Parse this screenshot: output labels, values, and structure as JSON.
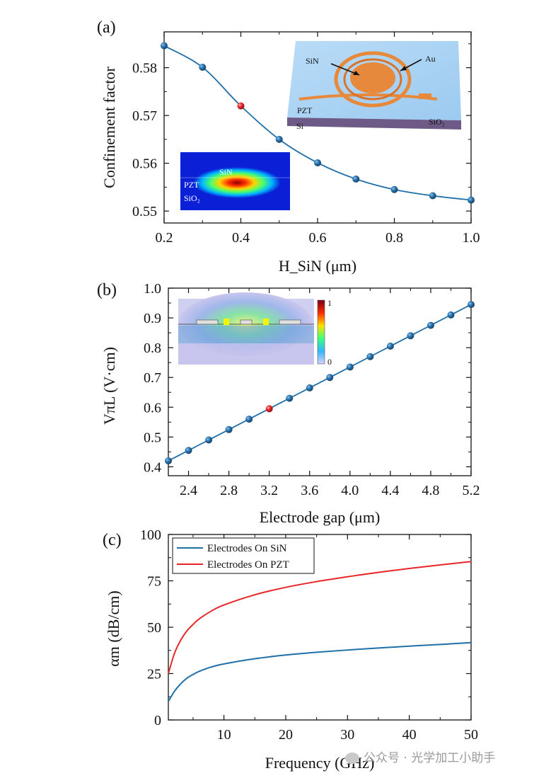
{
  "watermark": "公众号 · 光学加工小助手",
  "chart_data": [
    {
      "panel": "(a)",
      "type": "line",
      "xlabel": "H_SiN (μm)",
      "ylabel": "Confinement factor",
      "xlim": [
        0.2,
        1.0
      ],
      "ylim": [
        0.5475,
        0.5875
      ],
      "xticks": [
        "0.2",
        "0.4",
        "0.6",
        "0.8",
        "1.0"
      ],
      "yticks": [
        "0.55",
        "0.56",
        "0.57",
        "0.58"
      ],
      "series": [
        {
          "x": [
            0.2,
            0.3,
            0.5,
            0.6,
            0.7,
            0.8,
            0.9,
            1.0
          ],
          "y": [
            0.5846,
            0.5801,
            0.565,
            0.5601,
            0.5567,
            0.5545,
            0.5532,
            0.5523
          ]
        }
      ],
      "highlight": {
        "x": 0.4,
        "y": 0.572
      },
      "insets": [
        {
          "kind": "mode-profile",
          "labels": [
            "SiN",
            "PZT",
            "SiO₂"
          ]
        },
        {
          "kind": "device-3d",
          "labels": [
            "SiN",
            "Au",
            "PZT",
            "Si",
            "SiO₂"
          ]
        }
      ],
      "colors": {
        "line": "#1f6fa8",
        "marker": "#1c5f93",
        "highlight": "#e8262a"
      }
    },
    {
      "panel": "(b)",
      "type": "line",
      "xlabel": "Electrode gap (μm)",
      "ylabel": "VπL (V·cm)",
      "xlim": [
        2.2,
        5.2
      ],
      "ylim": [
        0.37,
        1.0
      ],
      "xticks": [
        "2.4",
        "2.8",
        "3.2",
        "3.6",
        "4.0",
        "4.4",
        "4.8",
        "5.2"
      ],
      "yticks": [
        "0.4",
        "0.5",
        "0.6",
        "0.7",
        "0.8",
        "0.9",
        "1.0"
      ],
      "series": [
        {
          "x": [
            2.2,
            2.4,
            2.6,
            2.8,
            3.0,
            3.4,
            3.6,
            3.8,
            4.0,
            4.2,
            4.4,
            4.6,
            4.8,
            5.0,
            5.2
          ],
          "y": [
            0.42,
            0.455,
            0.49,
            0.525,
            0.56,
            0.63,
            0.665,
            0.7,
            0.735,
            0.77,
            0.805,
            0.84,
            0.875,
            0.91,
            0.945
          ]
        }
      ],
      "highlight": {
        "x": 3.2,
        "y": 0.595
      },
      "insets": [
        {
          "kind": "field-map",
          "colorbar_ticks": [
            "1",
            "0"
          ]
        }
      ],
      "colors": {
        "line": "#1f6fa8",
        "marker": "#1c5f93",
        "highlight": "#e8262a"
      }
    },
    {
      "panel": "(c)",
      "type": "line",
      "xlabel": "Frequency (GHz)",
      "ylabel": "αm (dB/cm)",
      "xlim": [
        1,
        50
      ],
      "ylim": [
        0,
        100
      ],
      "xticks": [
        "10",
        "20",
        "30",
        "40",
        "50"
      ],
      "yticks": [
        "0",
        "25",
        "50",
        "75",
        "100"
      ],
      "legend": "top-left",
      "series": [
        {
          "name": "Electrodes On SiN",
          "color": "#1f6fa8",
          "x": [
            1,
            2,
            3,
            4,
            5,
            6,
            8,
            10,
            15,
            20,
            25,
            30,
            35,
            40,
            45,
            50
          ],
          "y": [
            10,
            15.5,
            19.5,
            22.5,
            24.5,
            26.2,
            28.6,
            30.2,
            33.0,
            35.0,
            36.5,
            37.7,
            38.8,
            39.8,
            40.7,
            41.7
          ]
        },
        {
          "name": "Electrodes On PZT",
          "color": "#e8262a",
          "x": [
            1,
            2,
            3,
            4,
            5,
            6,
            8,
            10,
            15,
            20,
            25,
            30,
            35,
            40,
            45,
            50
          ],
          "y": [
            25,
            36,
            43,
            48,
            51.5,
            54.5,
            58.8,
            62.0,
            67.5,
            71.5,
            74.6,
            77.2,
            79.6,
            81.7,
            83.6,
            85.4
          ]
        }
      ]
    }
  ]
}
